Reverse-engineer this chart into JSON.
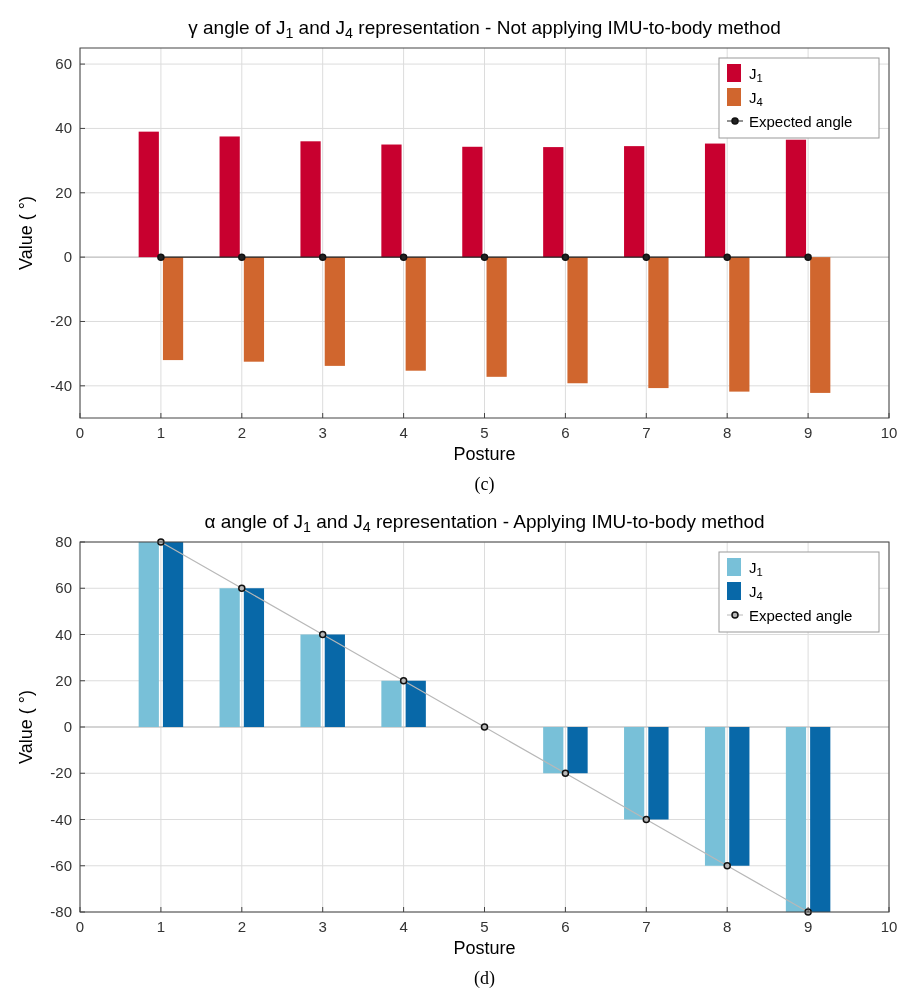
{
  "chart_data": [
    {
      "type": "bar",
      "title": "γ angle of J$_{1}$ and J$_{4}$ representation - Not applying IMU-to-body method",
      "xlabel": "Posture",
      "ylabel": "Value ( °)",
      "x": [
        1,
        2,
        3,
        4,
        5,
        6,
        7,
        8,
        9
      ],
      "xlim": [
        0,
        10
      ],
      "xticks": [
        0,
        1,
        2,
        3,
        4,
        5,
        6,
        7,
        8,
        9,
        10
      ],
      "ylim": [
        -50,
        65
      ],
      "yticks": [
        -40,
        -20,
        0,
        20,
        40,
        60
      ],
      "grid": true,
      "legend": "top right",
      "annotations": [
        "(c)"
      ],
      "series": [
        {
          "name": "J$_{1}$",
          "color": "#c8002f",
          "values": [
            39,
            37.5,
            36,
            35,
            34.3,
            34.2,
            34.5,
            35.3,
            36.5
          ]
        },
        {
          "name": "J$_{4}$",
          "color": "#d0662e",
          "values": [
            -32,
            -32.5,
            -33.8,
            -35.3,
            -37.2,
            -39.2,
            -40.7,
            -41.8,
            -42.2
          ]
        },
        {
          "name": "Expected angle",
          "type": "line",
          "marker": "circle",
          "color": "#222222",
          "values": [
            0,
            0,
            0,
            0,
            0,
            0,
            0,
            0,
            0
          ]
        }
      ]
    },
    {
      "type": "bar",
      "title": "α angle of J$_{1}$ and J$_{4}$ representation - Applying IMU-to-body method",
      "xlabel": "Posture",
      "ylabel": "Value ( °)",
      "x": [
        1,
        2,
        3,
        4,
        5,
        6,
        7,
        8,
        9
      ],
      "xlim": [
        0,
        10
      ],
      "xticks": [
        0,
        1,
        2,
        3,
        4,
        5,
        6,
        7,
        8,
        9,
        10
      ],
      "ylim": [
        -80,
        80
      ],
      "yticks": [
        -80,
        -60,
        -40,
        -20,
        0,
        20,
        40,
        60,
        80
      ],
      "grid": true,
      "legend": "top right",
      "annotations": [
        "(d)"
      ],
      "series": [
        {
          "name": "J$_{1}$",
          "color": "#78c0d8",
          "values": [
            80,
            60,
            40,
            20,
            0,
            -20,
            -40,
            -60,
            -80
          ]
        },
        {
          "name": "J$_{4}$",
          "color": "#0868a8",
          "values": [
            80,
            60,
            40,
            20,
            0,
            -20,
            -40,
            -60,
            -80
          ]
        },
        {
          "name": "Expected angle",
          "type": "line",
          "marker": "circle",
          "color": "#b8b8b8",
          "values": [
            80,
            60,
            40,
            20,
            0,
            -20,
            -40,
            -60,
            -80
          ]
        }
      ]
    }
  ]
}
